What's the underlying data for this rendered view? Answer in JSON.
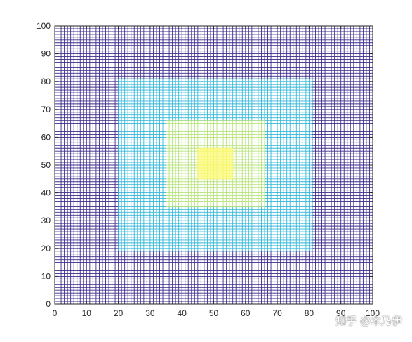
{
  "chart_data": {
    "type": "heatmap",
    "title": "",
    "xlabel": "",
    "ylabel": "",
    "xlim": [
      0,
      100
    ],
    "ylim": [
      0,
      100
    ],
    "xticks": [
      0,
      10,
      20,
      30,
      40,
      50,
      60,
      70,
      80,
      90,
      100
    ],
    "yticks": [
      0,
      10,
      20,
      30,
      40,
      50,
      60,
      70,
      80,
      90,
      100
    ],
    "grid_spacing": 1,
    "grid": true,
    "regions": [
      {
        "x": [
          0,
          100
        ],
        "y": [
          0,
          100
        ],
        "color": "#3d2b8c",
        "fill": "#ffffff"
      },
      {
        "x": [
          20,
          81
        ],
        "y": [
          19,
          81
        ],
        "color": "#33b7d8",
        "fill": "#ffffff"
      },
      {
        "x": [
          35,
          66
        ],
        "y": [
          35,
          66
        ],
        "color": "#b7e27a",
        "fill": "#ffffff"
      },
      {
        "x": [
          45,
          56
        ],
        "y": [
          45,
          56
        ],
        "color": "#f6f56a",
        "fill": "#fbfb9a"
      }
    ]
  },
  "watermark": "知乎 @木乃伊"
}
